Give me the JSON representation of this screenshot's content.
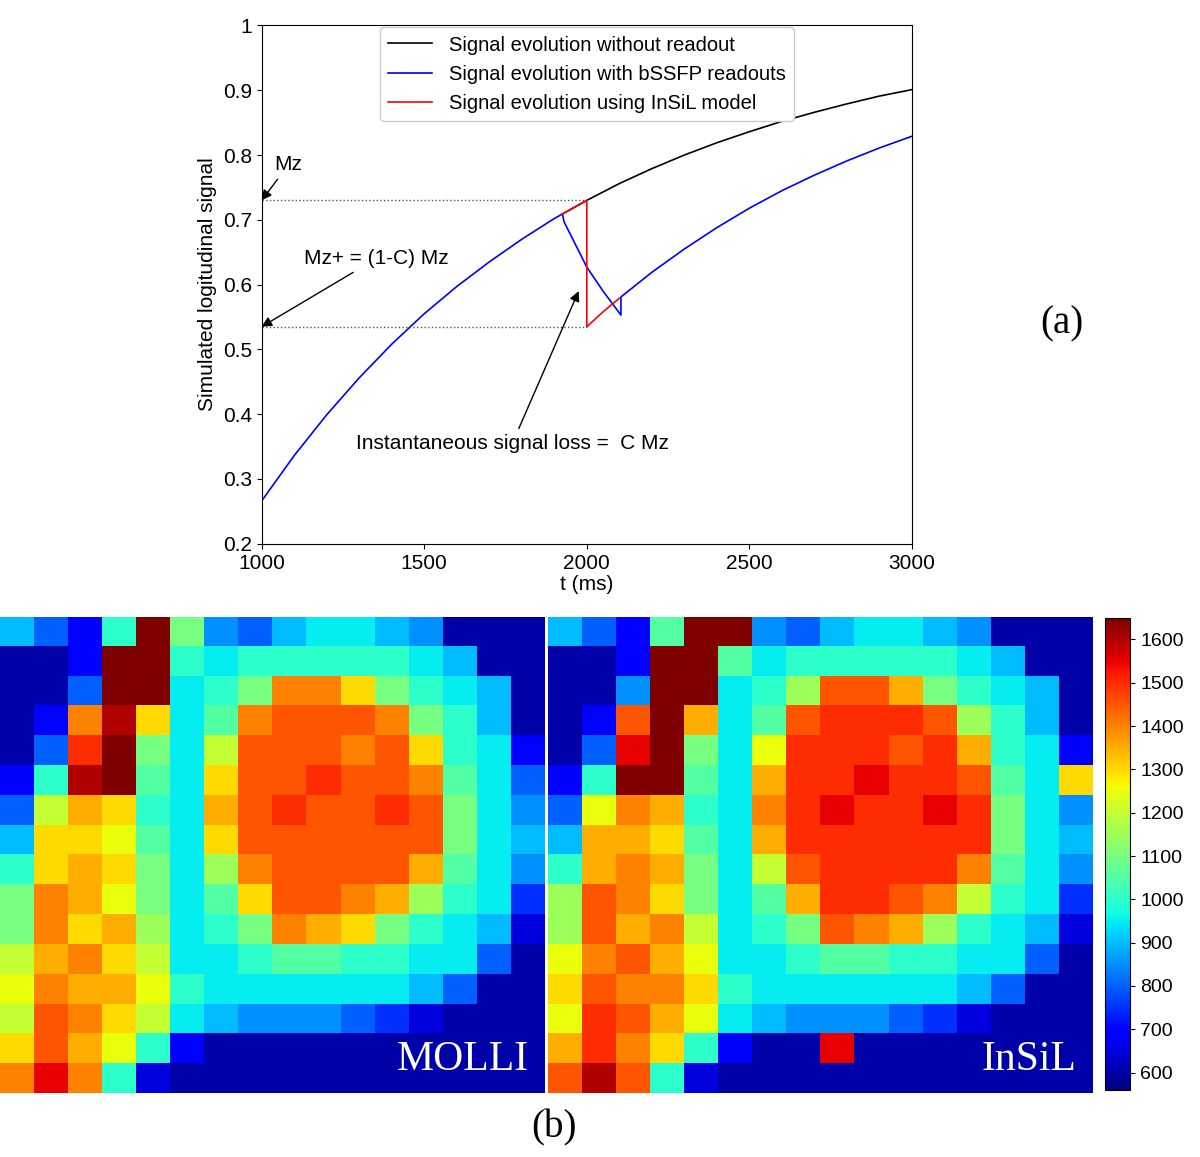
{
  "chart_data": [
    {
      "type": "line",
      "panel_label": "(a)",
      "x_label": "t (ms)",
      "y_label": "Simulated logitudinal signal",
      "xlim": [
        1000,
        3000
      ],
      "ylim": [
        0.2,
        1
      ],
      "xticks": [
        1000,
        1500,
        2000,
        2500,
        3000
      ],
      "yticks": [
        0.2,
        0.3,
        0.4,
        0.5,
        0.6,
        0.7,
        0.8,
        0.9,
        1
      ],
      "legend": "upper center",
      "series": [
        {
          "name": "Signal evolution without readout",
          "color": "#000000",
          "line_style": "solid",
          "x": [
            1925,
            2000,
            2100,
            2200,
            2300,
            2400,
            2500,
            2600,
            2700,
            2800,
            2900,
            3000
          ],
          "values": [
            0.709,
            0.73,
            0.756,
            0.779,
            0.8,
            0.819,
            0.836,
            0.852,
            0.866,
            0.879,
            0.891,
            0.901
          ]
        },
        {
          "name": "Signal evolution with bSSFP readouts",
          "color": "#0000ff",
          "line_style": "solid",
          "x": [
            1000,
            1100,
            1200,
            1300,
            1400,
            1500,
            1600,
            1700,
            1800,
            1900,
            1925,
            1930,
            2000,
            2050,
            2105,
            2105,
            2200,
            2300,
            2400,
            2500,
            2600,
            2700,
            2800,
            2900,
            3000
          ],
          "values": [
            0.266,
            0.336,
            0.399,
            0.456,
            0.508,
            0.555,
            0.597,
            0.635,
            0.67,
            0.702,
            0.709,
            0.697,
            0.627,
            0.59,
            0.553,
            0.581,
            0.619,
            0.655,
            0.688,
            0.718,
            0.745,
            0.769,
            0.791,
            0.811,
            0.829
          ]
        },
        {
          "name": "Signal evolution using InSiL model",
          "color": "#ff0000",
          "line_style": "solid",
          "x": [
            1925,
            2000,
            2000,
            2050,
            2100
          ],
          "values": [
            0.709,
            0.73,
            0.535,
            0.558,
            0.579
          ]
        }
      ],
      "guides": [
        {
          "y": 0.73,
          "x": [
            1000,
            2000
          ],
          "line_style": "dotted"
        },
        {
          "y": 0.535,
          "x": [
            1000,
            2000
          ],
          "line_style": "dotted"
        }
      ],
      "annotations": [
        {
          "text": "Mz",
          "xy": [
            1000,
            0.73
          ]
        },
        {
          "text": "Mz+ = (1-C) Mz",
          "xy": [
            1000,
            0.535
          ]
        },
        {
          "text": "Instantaneous signal loss =  C Mz",
          "xy": [
            1975,
            0.59
          ]
        }
      ]
    },
    {
      "type": "heatmap",
      "label": "MOLLI",
      "zlim": [
        560,
        1650
      ],
      "cells": [
        [
          900,
          800,
          700,
          1000,
          1650,
          1100,
          850,
          800,
          900,
          950,
          950,
          900,
          850,
          600,
          600,
          600
        ],
        [
          600,
          600,
          700,
          1650,
          1650,
          1000,
          950,
          1000,
          1000,
          1000,
          1000,
          1000,
          950,
          900,
          600,
          600
        ],
        [
          600,
          600,
          800,
          1650,
          1650,
          950,
          1000,
          1100,
          1400,
          1400,
          1300,
          1100,
          1000,
          950,
          900,
          600
        ],
        [
          600,
          700,
          1400,
          1600,
          1300,
          950,
          1050,
          1400,
          1450,
          1450,
          1450,
          1400,
          1100,
          1000,
          900,
          600
        ],
        [
          600,
          800,
          1500,
          1650,
          1100,
          950,
          1200,
          1450,
          1450,
          1450,
          1400,
          1450,
          1300,
          1000,
          950,
          700
        ],
        [
          700,
          1000,
          1600,
          1650,
          1050,
          950,
          1300,
          1450,
          1450,
          1500,
          1450,
          1450,
          1400,
          1050,
          950,
          800
        ],
        [
          800,
          1200,
          1350,
          1300,
          1000,
          950,
          1350,
          1450,
          1500,
          1450,
          1450,
          1500,
          1450,
          1100,
          950,
          850
        ],
        [
          900,
          1300,
          1300,
          1250,
          1050,
          950,
          1300,
          1450,
          1450,
          1450,
          1450,
          1450,
          1450,
          1100,
          950,
          900
        ],
        [
          1000,
          1300,
          1350,
          1300,
          1100,
          950,
          1150,
          1400,
          1450,
          1450,
          1450,
          1450,
          1350,
          1050,
          950,
          850
        ],
        [
          1100,
          1400,
          1350,
          1250,
          1100,
          950,
          1050,
          1300,
          1450,
          1450,
          1400,
          1350,
          1150,
          1000,
          950,
          750
        ],
        [
          1100,
          1400,
          1300,
          1350,
          1150,
          950,
          1000,
          1100,
          1400,
          1350,
          1300,
          1100,
          1000,
          950,
          900,
          650
        ],
        [
          1200,
          1350,
          1400,
          1300,
          1200,
          950,
          950,
          1000,
          1050,
          1050,
          1000,
          1000,
          950,
          950,
          800,
          600
        ],
        [
          1250,
          1400,
          1350,
          1350,
          1250,
          1000,
          950,
          950,
          950,
          950,
          950,
          950,
          900,
          800,
          600,
          600
        ],
        [
          1200,
          1450,
          1400,
          1300,
          1200,
          950,
          900,
          850,
          850,
          850,
          800,
          750,
          650,
          600,
          600,
          600
        ],
        [
          1300,
          1450,
          1350,
          1250,
          1000,
          700,
          600,
          600,
          600,
          600,
          600,
          600,
          600,
          600,
          600,
          600
        ],
        [
          1400,
          1550,
          1400,
          1000,
          650,
          600,
          600,
          600,
          600,
          600,
          600,
          600,
          600,
          600,
          600,
          600
        ]
      ]
    },
    {
      "type": "heatmap",
      "label": "InSiL",
      "zlim": [
        560,
        1650
      ],
      "colorbar": {
        "range": [
          560,
          1650
        ],
        "ticks": [
          600,
          700,
          800,
          900,
          1000,
          1100,
          1200,
          1300,
          1400,
          1500,
          1600
        ]
      },
      "cells": [
        [
          900,
          800,
          700,
          1050,
          1650,
          1650,
          850,
          800,
          900,
          950,
          950,
          900,
          850,
          600,
          600,
          600
        ],
        [
          600,
          600,
          700,
          1650,
          1650,
          1050,
          950,
          1000,
          1000,
          1000,
          1000,
          1000,
          950,
          900,
          600,
          600
        ],
        [
          600,
          600,
          850,
          1650,
          1650,
          950,
          1000,
          1150,
          1450,
          1450,
          1350,
          1100,
          1000,
          950,
          900,
          600
        ],
        [
          600,
          700,
          1450,
          1650,
          1350,
          950,
          1050,
          1450,
          1500,
          1500,
          1500,
          1450,
          1150,
          1000,
          900,
          600
        ],
        [
          600,
          800,
          1550,
          1650,
          1100,
          950,
          1250,
          1500,
          1500,
          1500,
          1450,
          1500,
          1350,
          1000,
          950,
          700
        ],
        [
          700,
          1000,
          1650,
          1650,
          1050,
          950,
          1350,
          1500,
          1500,
          1550,
          1500,
          1500,
          1450,
          1050,
          950,
          1300
        ],
        [
          800,
          1250,
          1400,
          1350,
          1000,
          950,
          1400,
          1500,
          1550,
          1500,
          1500,
          1550,
          1500,
          1100,
          950,
          850
        ],
        [
          900,
          1350,
          1350,
          1300,
          1050,
          950,
          1350,
          1500,
          1500,
          1500,
          1500,
          1500,
          1500,
          1100,
          950,
          900
        ],
        [
          1000,
          1350,
          1400,
          1350,
          1100,
          950,
          1200,
          1450,
          1500,
          1500,
          1500,
          1500,
          1400,
          1050,
          950,
          850
        ],
        [
          1150,
          1450,
          1400,
          1300,
          1100,
          950,
          1050,
          1350,
          1500,
          1500,
          1450,
          1400,
          1200,
          1000,
          950,
          750
        ],
        [
          1150,
          1450,
          1350,
          1400,
          1200,
          950,
          1000,
          1100,
          1450,
          1400,
          1350,
          1150,
          1000,
          950,
          900,
          650
        ],
        [
          1250,
          1400,
          1450,
          1350,
          1250,
          950,
          950,
          1000,
          1050,
          1050,
          1000,
          1000,
          950,
          950,
          800,
          600
        ],
        [
          1300,
          1450,
          1400,
          1400,
          1300,
          1000,
          950,
          950,
          950,
          950,
          950,
          950,
          900,
          800,
          600,
          600
        ],
        [
          1250,
          1500,
          1450,
          1350,
          1250,
          950,
          900,
          850,
          850,
          850,
          800,
          750,
          650,
          600,
          600,
          600
        ],
        [
          1350,
          1500,
          1400,
          1300,
          1000,
          700,
          600,
          600,
          1550,
          600,
          600,
          600,
          600,
          600,
          600,
          600
        ],
        [
          1450,
          1600,
          1450,
          1000,
          650,
          600,
          600,
          600,
          600,
          600,
          600,
          600,
          600,
          600,
          600,
          600
        ]
      ]
    }
  ],
  "figure": {
    "panel_label": "(b)"
  }
}
